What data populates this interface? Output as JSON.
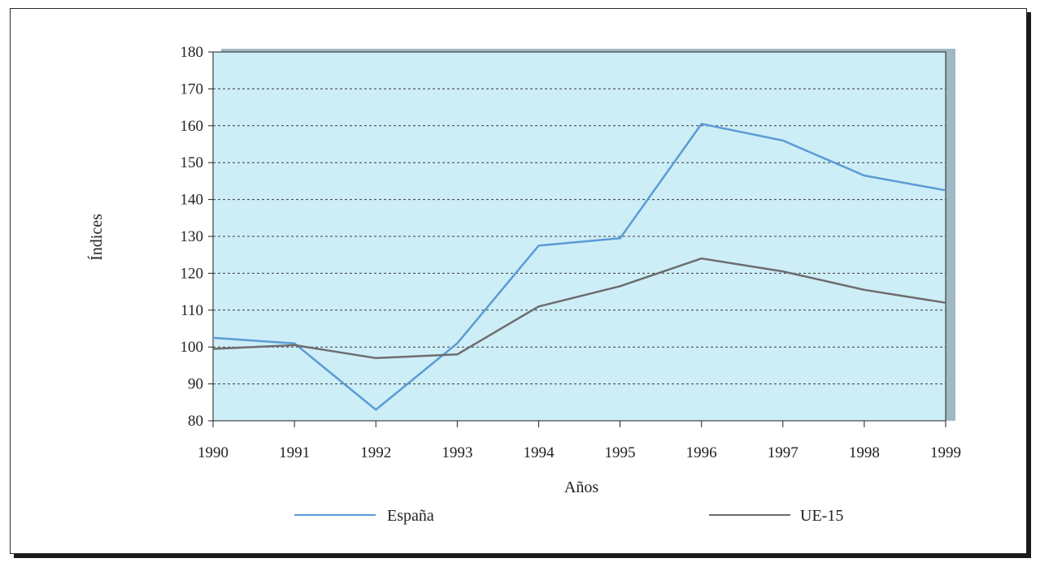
{
  "chart_data": {
    "type": "line",
    "xlabel": "Años",
    "ylabel": "Índices",
    "categories": [
      "1990",
      "1991",
      "1992",
      "1993",
      "1994",
      "1995",
      "1996",
      "1997",
      "1998",
      "1999"
    ],
    "ylim": [
      80,
      180
    ],
    "yticks": [
      "80",
      "90",
      "100",
      "110",
      "120",
      "130",
      "140",
      "150",
      "160",
      "170",
      "180"
    ],
    "grid": true,
    "legend_position": "bottom",
    "plot_background": "#cdeef7",
    "series": [
      {
        "name": "España",
        "color": "#5b9bd5",
        "values": [
          102.5,
          101,
          83,
          101,
          127.5,
          129.5,
          160.5,
          156,
          146.5,
          142.5
        ]
      },
      {
        "name": "UE-15",
        "color": "#6d6d6d",
        "values": [
          99.5,
          100.5,
          97,
          98,
          111,
          116.5,
          124,
          120.5,
          115.5,
          112
        ]
      }
    ]
  }
}
